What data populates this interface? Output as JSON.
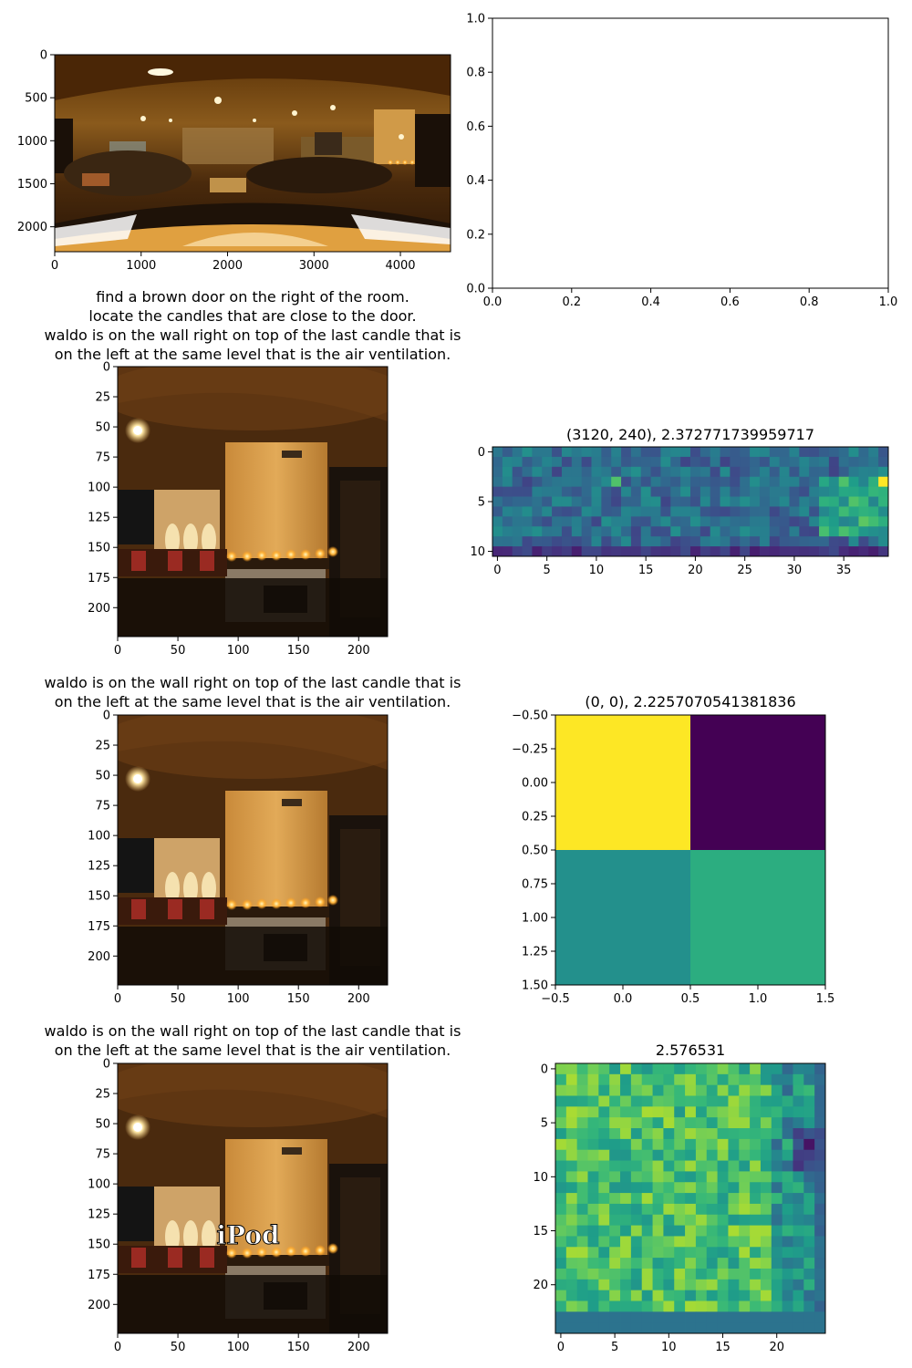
{
  "chart_data": [
    {
      "type": "image",
      "name": "panorama",
      "title": "",
      "xticks": [
        0,
        1000,
        2000,
        3000,
        4000
      ],
      "yticks": [
        0,
        500,
        1000,
        1500,
        2000
      ],
      "xlim": [
        0,
        4580
      ],
      "ylim": [
        2290,
        0
      ]
    },
    {
      "type": "empty",
      "title": "",
      "xticks": [
        "0.0",
        "0.2",
        "0.4",
        "0.6",
        "0.8",
        "1.0"
      ],
      "yticks": [
        "0.0",
        "0.2",
        "0.4",
        "0.6",
        "0.8",
        "1.0"
      ],
      "xlim": [
        0,
        1
      ],
      "ylim": [
        0,
        1
      ]
    },
    {
      "type": "image",
      "name": "crop-1",
      "title_lines": [
        "find a brown door on the right of the room.",
        "locate the candles that are close to the door.",
        "waldo is on the wall right on top of the last candle that is",
        "on the left at the same level that is the air ventilation."
      ],
      "xticks": [
        0,
        50,
        100,
        150,
        200
      ],
      "yticks": [
        0,
        25,
        50,
        75,
        100,
        125,
        150,
        175,
        200
      ],
      "xlim": [
        0,
        224
      ],
      "ylim": [
        224,
        0
      ]
    },
    {
      "type": "heatmap",
      "title": "(3120, 240), 2.372771739959717",
      "cols": 40,
      "rows": 11,
      "xticks": [
        0,
        5,
        10,
        15,
        20,
        25,
        30,
        35
      ],
      "yticks": [
        0,
        5,
        10
      ],
      "colormap": "viridis"
    },
    {
      "type": "image",
      "name": "crop-2",
      "title_lines": [
        "waldo is on the wall right on top of the last candle that is",
        "on the left at the same level that is the air ventilation."
      ],
      "xticks": [
        0,
        50,
        100,
        150,
        200
      ],
      "yticks": [
        0,
        25,
        50,
        75,
        100,
        125,
        150,
        175,
        200
      ],
      "xlim": [
        0,
        224
      ],
      "ylim": [
        224,
        0
      ]
    },
    {
      "type": "heatmap",
      "title": "(0, 0), 2.2257070541381836",
      "cols": 2,
      "rows": 2,
      "values": [
        [
          1.0,
          0.0
        ],
        [
          0.5,
          0.62
        ]
      ],
      "xticks": [
        "−0.5",
        "0.0",
        "0.5",
        "1.0",
        "1.5"
      ],
      "yticks": [
        "−0.50",
        "−0.25",
        "0.00",
        "0.25",
        "0.50",
        "0.75",
        "1.00",
        "1.25",
        "1.50"
      ],
      "xlim": [
        -0.5,
        1.5
      ],
      "ylim": [
        1.5,
        -0.5
      ],
      "colormap": "viridis"
    },
    {
      "type": "image",
      "name": "crop-3",
      "title_lines": [
        "waldo is on the wall right on top of the last candle that is",
        "on the left at the same level that is the air ventilation."
      ],
      "overlay_text": "iPod",
      "xticks": [
        0,
        50,
        100,
        150,
        200
      ],
      "yticks": [
        0,
        25,
        50,
        75,
        100,
        125,
        150,
        175,
        200
      ],
      "xlim": [
        0,
        224
      ],
      "ylim": [
        224,
        0
      ]
    },
    {
      "type": "heatmap",
      "title": "2.576531",
      "cols": 25,
      "rows": 25,
      "xticks": [
        0,
        5,
        10,
        15,
        20
      ],
      "yticks": [
        0,
        5,
        10,
        15,
        20
      ],
      "colormap": "viridis"
    }
  ]
}
